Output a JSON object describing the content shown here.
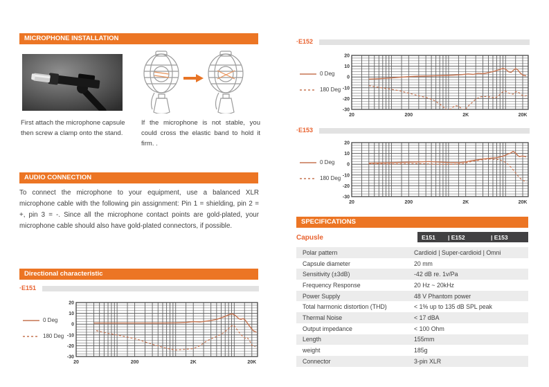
{
  "sections": {
    "installation": {
      "title": "MICROPHONE INSTALLATION",
      "caption_left": "First attach the microphone capsule then screw a clamp onto the stand.",
      "caption_right": "If the microphone is not stable, you could cross the elastic band to hold it firm. ."
    },
    "audio": {
      "title": "AUDIO CONNECTION",
      "body": "To connect the microphone to your equipment, use a balanced XLR microphone cable with the following pin assignment: Pin 1 = shielding, pin 2 = +, pin 3 = -. Since all the microphone contact points are gold-plated, your microphone cable should also have gold-plated connectors, if possible."
    },
    "directional": {
      "title": "Directional characteristic"
    }
  },
  "chart_data": [
    {
      "id": "e151",
      "label": "·E151",
      "type": "line",
      "x_ticks": [
        [
          20,
          "20"
        ],
        [
          200,
          "200"
        ],
        [
          2000,
          "2K"
        ],
        [
          20000,
          "20K"
        ]
      ],
      "y_ticks": [
        20,
        10,
        0,
        -10,
        -20,
        -30
      ],
      "xlim": [
        20,
        25000
      ],
      "ylim": [
        -30,
        20
      ],
      "x_scale": "log",
      "grid": true,
      "color": "#C67450",
      "legend": [
        {
          "label": "0 Deg",
          "style": "solid"
        },
        {
          "label": "180 Deg",
          "style": "dashed"
        }
      ],
      "series": [
        {
          "name": "0 Deg",
          "style": "solid",
          "points": [
            [
              40,
              1
            ],
            [
              100,
              1
            ],
            [
              300,
              1
            ],
            [
              600,
              1
            ],
            [
              1000,
              1.2
            ],
            [
              1500,
              1.6
            ],
            [
              2000,
              2.4
            ],
            [
              2600,
              2
            ],
            [
              3200,
              2.6
            ],
            [
              4000,
              3.4
            ],
            [
              5000,
              4.4
            ],
            [
              6500,
              6.5
            ],
            [
              8000,
              8.6
            ],
            [
              9200,
              9.6
            ],
            [
              10500,
              8
            ],
            [
              12000,
              5
            ],
            [
              13000,
              4.4
            ],
            [
              14200,
              5.2
            ],
            [
              15500,
              3.6
            ],
            [
              17000,
              0.5
            ],
            [
              19000,
              -3
            ],
            [
              21000,
              -6
            ],
            [
              24000,
              -7.5
            ]
          ]
        },
        {
          "name": "180 Deg",
          "style": "dashed",
          "points": [
            [
              44,
              -6
            ],
            [
              70,
              -8.5
            ],
            [
              100,
              -10
            ],
            [
              150,
              -12
            ],
            [
              220,
              -14
            ],
            [
              300,
              -16.5
            ],
            [
              420,
              -19
            ],
            [
              600,
              -21.5
            ],
            [
              800,
              -23
            ],
            [
              1000,
              -24
            ],
            [
              1400,
              -23.4
            ],
            [
              2000,
              -22.6
            ],
            [
              2600,
              -20
            ],
            [
              3200,
              -16.5
            ],
            [
              4000,
              -13.5
            ],
            [
              5000,
              -11.5
            ],
            [
              6200,
              -9
            ],
            [
              7500,
              -5.5
            ],
            [
              8800,
              -2
            ],
            [
              9800,
              -0.8
            ],
            [
              11000,
              -4.5
            ],
            [
              12500,
              -8.5
            ],
            [
              14000,
              -11.5
            ],
            [
              15500,
              -13
            ],
            [
              16500,
              -12.4
            ],
            [
              18000,
              -14.5
            ],
            [
              20000,
              -19.5
            ],
            [
              23000,
              -21
            ]
          ]
        }
      ]
    },
    {
      "id": "e152",
      "label": "·E152",
      "type": "line",
      "x_ticks": [
        [
          20,
          "20"
        ],
        [
          200,
          "200"
        ],
        [
          2000,
          "2K"
        ],
        [
          20000,
          "20K"
        ]
      ],
      "y_ticks": [
        20,
        10,
        0,
        -10,
        -20,
        -30
      ],
      "xlim": [
        20,
        25000
      ],
      "ylim": [
        -30,
        20
      ],
      "x_scale": "log",
      "grid": true,
      "color": "#C67450",
      "legend": [
        {
          "label": "0 Deg",
          "style": "solid"
        },
        {
          "label": "180 Deg",
          "style": "dashed"
        }
      ],
      "series": [
        {
          "name": "0 Deg",
          "style": "solid",
          "points": [
            [
              40,
              -2
            ],
            [
              60,
              -1.6
            ],
            [
              90,
              -1
            ],
            [
              130,
              -0.4
            ],
            [
              200,
              0.3
            ],
            [
              300,
              0.8
            ],
            [
              500,
              1
            ],
            [
              800,
              1.4
            ],
            [
              1200,
              1.7
            ],
            [
              1700,
              2.2
            ],
            [
              2200,
              2.8
            ],
            [
              2700,
              2.4
            ],
            [
              3300,
              3.4
            ],
            [
              4000,
              3
            ],
            [
              5000,
              4
            ],
            [
              6000,
              5
            ],
            [
              7500,
              6.5
            ],
            [
              9000,
              8
            ],
            [
              10000,
              7.2
            ],
            [
              11500,
              4.6
            ],
            [
              12500,
              4.2
            ],
            [
              14000,
              6.6
            ],
            [
              15000,
              7.8
            ],
            [
              16500,
              6.4
            ],
            [
              18000,
              3.8
            ],
            [
              20000,
              1.8
            ],
            [
              23000,
              1
            ]
          ]
        },
        {
          "name": "180 Deg",
          "style": "dashed",
          "points": [
            [
              40,
              -8
            ],
            [
              60,
              -9.6
            ],
            [
              90,
              -11
            ],
            [
              140,
              -12.8
            ],
            [
              200,
              -15
            ],
            [
              300,
              -17.4
            ],
            [
              420,
              -19.2
            ],
            [
              550,
              -21.5
            ],
            [
              700,
              -25
            ],
            [
              820,
              -28
            ],
            [
              950,
              -30.5
            ],
            [
              1100,
              -29.5
            ],
            [
              1300,
              -26.5
            ],
            [
              1500,
              -27
            ],
            [
              1750,
              -30
            ],
            [
              1950,
              -30.5
            ],
            [
              2200,
              -27
            ],
            [
              2600,
              -23.5
            ],
            [
              3000,
              -20.5
            ],
            [
              3600,
              -18.4
            ],
            [
              4400,
              -18
            ],
            [
              5500,
              -18.6
            ],
            [
              6500,
              -19.6
            ],
            [
              7500,
              -17.5
            ],
            [
              8800,
              -14
            ],
            [
              10000,
              -13
            ],
            [
              11000,
              -14.6
            ],
            [
              12500,
              -15.5
            ],
            [
              13500,
              -16
            ],
            [
              14800,
              -14
            ],
            [
              16000,
              -13.4
            ],
            [
              17500,
              -14.8
            ],
            [
              19000,
              -16.5
            ],
            [
              21000,
              -18
            ],
            [
              23500,
              -17
            ]
          ]
        }
      ]
    },
    {
      "id": "e153",
      "label": "·E153",
      "type": "line",
      "x_ticks": [
        [
          20,
          "20"
        ],
        [
          200,
          "200"
        ],
        [
          2000,
          "2K"
        ],
        [
          20000,
          "20K"
        ]
      ],
      "y_ticks": [
        20,
        10,
        0,
        -10,
        -20,
        -30
      ],
      "xlim": [
        20,
        25000
      ],
      "ylim": [
        -30,
        20
      ],
      "x_scale": "log",
      "grid": true,
      "color": "#C67450",
      "legend": [
        {
          "label": "0 Deg",
          "style": "solid"
        },
        {
          "label": "180 Deg",
          "style": "dashed"
        }
      ],
      "series": [
        {
          "name": "0 Deg",
          "style": "solid",
          "points": [
            [
              40,
              1
            ],
            [
              80,
              1.3
            ],
            [
              150,
              1.8
            ],
            [
              300,
              2.2
            ],
            [
              450,
              2.5
            ],
            [
              700,
              2
            ],
            [
              1000,
              1.6
            ],
            [
              1500,
              1.5
            ],
            [
              2000,
              2.2
            ],
            [
              2600,
              3.4
            ],
            [
              3200,
              4
            ],
            [
              4000,
              4.8
            ],
            [
              5000,
              5.4
            ],
            [
              6000,
              5.8
            ],
            [
              7000,
              6
            ],
            [
              8000,
              6.8
            ],
            [
              9000,
              7.4
            ],
            [
              10000,
              8.4
            ],
            [
              11000,
              9.4
            ],
            [
              12000,
              10
            ],
            [
              13500,
              11.8
            ],
            [
              14500,
              11
            ],
            [
              15500,
              9.4
            ],
            [
              16500,
              8
            ],
            [
              17500,
              7
            ],
            [
              18500,
              7.4
            ],
            [
              20000,
              7.6
            ],
            [
              23000,
              6.8
            ]
          ]
        },
        {
          "name": "180 Deg",
          "style": "dashed",
          "points": [
            [
              40,
              0.4
            ],
            [
              100,
              0.2
            ],
            [
              200,
              0.6
            ],
            [
              350,
              0.5
            ],
            [
              600,
              0
            ],
            [
              900,
              -0.2
            ],
            [
              1300,
              0
            ],
            [
              1800,
              0.6
            ],
            [
              2300,
              2
            ],
            [
              2800,
              3
            ],
            [
              3500,
              3.8
            ],
            [
              4400,
              4.6
            ],
            [
              5200,
              4.8
            ],
            [
              6000,
              4.4
            ],
            [
              7000,
              4.4
            ],
            [
              8000,
              4
            ],
            [
              9000,
              3
            ],
            [
              10000,
              1.6
            ],
            [
              11000,
              0
            ],
            [
              12000,
              -2
            ],
            [
              13000,
              -4
            ],
            [
              14000,
              -6
            ],
            [
              15000,
              -8
            ],
            [
              16000,
              -10
            ],
            [
              17000,
              -11.6
            ],
            [
              18000,
              -13
            ],
            [
              19500,
              -14.6
            ],
            [
              21000,
              -15.4
            ],
            [
              23500,
              -16.2
            ]
          ]
        }
      ]
    }
  ],
  "specifications": {
    "title": "SPECIFICATIONS",
    "capsule_label": "Capusle",
    "separator": "| ",
    "models": [
      "E151",
      "E152",
      "E153"
    ],
    "rows": [
      {
        "label": "Polar pattern",
        "value": "Cardioid | Super-cardioid | Omni"
      },
      {
        "label": "Capsule diameter",
        "value": "20 mm"
      },
      {
        "label": "Sensitivity  (±3dB)",
        "value": "-42 dB re. 1v/Pa"
      },
      {
        "label": "Frequency Response",
        "value": "20 Hz ~ 20kHz"
      },
      {
        "label": "Power Supply",
        "value": "48 V Phantom power"
      },
      {
        "label": "Total harmonic distortion (THD)",
        "value": "< 1% up to 135 dB SPL peak"
      },
      {
        "label": "Thermal Noise",
        "value": "< 17 dBA"
      },
      {
        "label": "Output impedance",
        "value": "< 100 Ohm"
      },
      {
        "label": "Length",
        "value": "155mm"
      },
      {
        "label": "weight",
        "value": "185g"
      },
      {
        "label": "Connector",
        "value": "3-pin XLR"
      }
    ]
  }
}
